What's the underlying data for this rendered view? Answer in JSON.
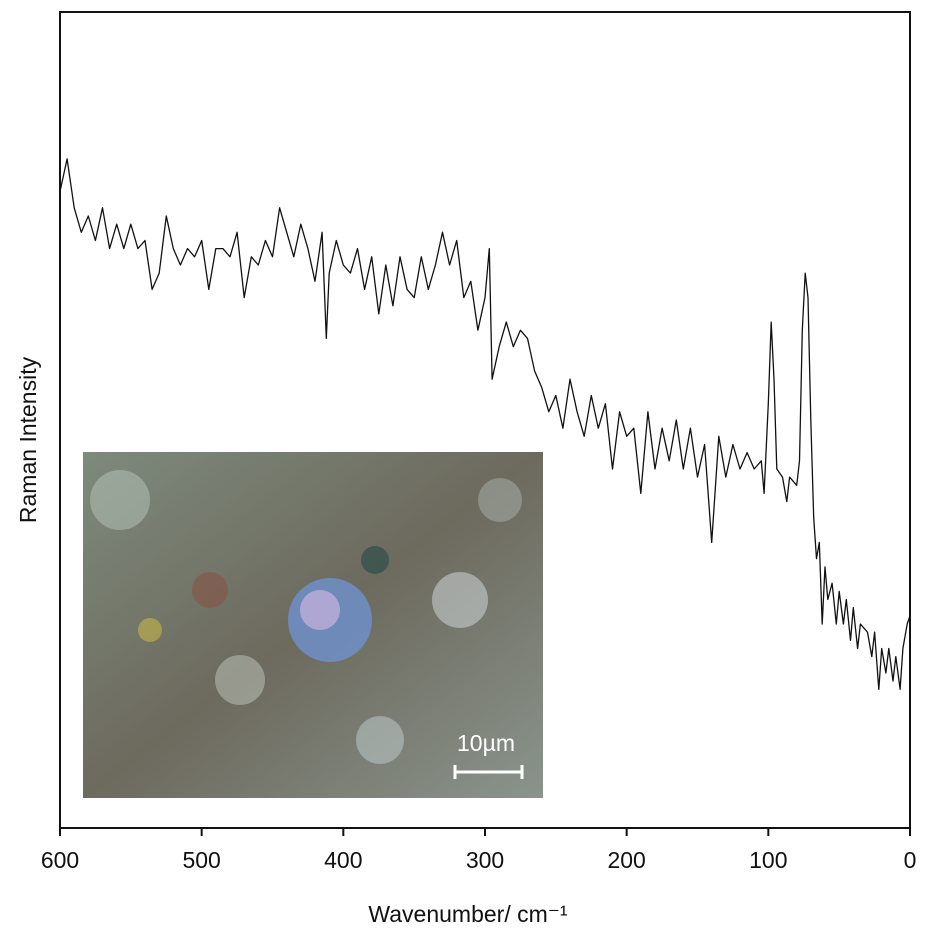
{
  "chart_data": {
    "type": "line",
    "xlabel": "Wavenumber/ cm⁻¹",
    "ylabel": "Raman Intensity",
    "inset_label": "10µm",
    "xlim": [
      600,
      0
    ],
    "xticks": [
      600,
      500,
      400,
      300,
      200,
      100,
      0
    ],
    "ylim": [
      0,
      100
    ],
    "color": "#111111",
    "x": [
      600,
      595,
      590,
      585,
      580,
      575,
      570,
      565,
      560,
      555,
      550,
      545,
      540,
      535,
      530,
      525,
      520,
      515,
      510,
      505,
      500,
      495,
      490,
      485,
      480,
      475,
      470,
      465,
      460,
      455,
      450,
      445,
      440,
      435,
      430,
      425,
      420,
      415,
      412,
      410,
      405,
      400,
      395,
      390,
      385,
      380,
      375,
      370,
      365,
      360,
      355,
      350,
      345,
      340,
      335,
      330,
      325,
      320,
      315,
      310,
      305,
      300,
      297,
      295,
      290,
      285,
      280,
      275,
      270,
      265,
      260,
      255,
      250,
      245,
      240,
      235,
      230,
      225,
      220,
      215,
      210,
      205,
      200,
      195,
      190,
      185,
      180,
      175,
      170,
      165,
      160,
      155,
      150,
      145,
      140,
      135,
      130,
      125,
      120,
      115,
      110,
      105,
      103,
      100,
      98,
      96,
      94,
      90,
      87,
      85,
      80,
      78,
      76,
      74,
      72,
      70,
      68,
      66,
      64,
      62,
      60,
      58,
      55,
      52,
      50,
      47,
      45,
      42,
      40,
      37,
      35,
      30,
      27,
      25,
      22,
      20,
      17,
      15,
      12,
      10,
      7,
      5,
      2,
      0
    ],
    "values": [
      78,
      82,
      76,
      73,
      75,
      72,
      76,
      71,
      74,
      71,
      74,
      71,
      72,
      66,
      68,
      75,
      71,
      69,
      71,
      70,
      72,
      66,
      71,
      71,
      70,
      73,
      65,
      70,
      69,
      72,
      70,
      76,
      73,
      70,
      74,
      71,
      67,
      73,
      60,
      68,
      72,
      69,
      68,
      71,
      66,
      70,
      63,
      69,
      64,
      70,
      66,
      65,
      70,
      66,
      69,
      73,
      69,
      72,
      65,
      67,
      61,
      65,
      71,
      55,
      59,
      62,
      59,
      61,
      60,
      56,
      54,
      51,
      53,
      49,
      55,
      51,
      48,
      53,
      49,
      52,
      44,
      51,
      48,
      49,
      41,
      51,
      44,
      49,
      45,
      50,
      44,
      49,
      43,
      47,
      35,
      48,
      43,
      47,
      44,
      46,
      44,
      45,
      41,
      52,
      62,
      55,
      44,
      43,
      40,
      43,
      42,
      45,
      61,
      68,
      65,
      50,
      38,
      33,
      35,
      25,
      32,
      28,
      30,
      25,
      29,
      25,
      28,
      23,
      27,
      22,
      25,
      24,
      21,
      24,
      17,
      22,
      19,
      22,
      18,
      21,
      17,
      22,
      25,
      26
    ]
  }
}
